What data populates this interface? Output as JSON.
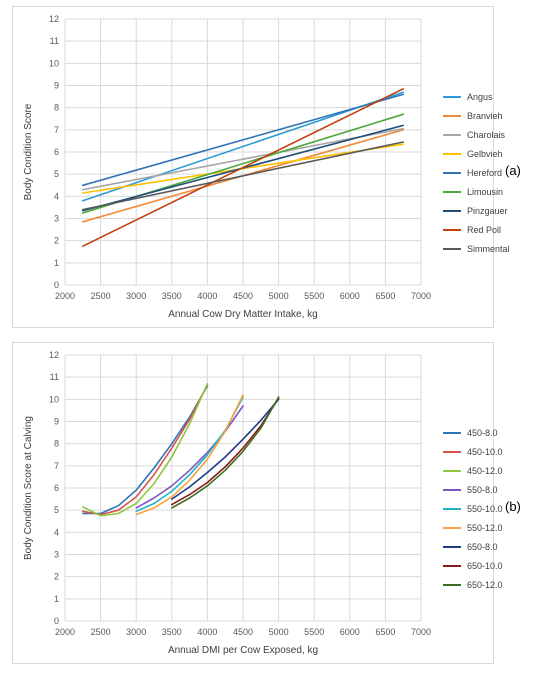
{
  "chart_data": [
    {
      "type": "line",
      "panel_label": "(a)",
      "title": "",
      "xlabel": "Annual Cow Dry Matter Intake, kg",
      "ylabel": "Body Condition Score",
      "xlim": [
        2000,
        7000
      ],
      "ylim": [
        0,
        12
      ],
      "xticks": [
        2000,
        2500,
        3000,
        3500,
        4000,
        4500,
        5000,
        5500,
        6000,
        6500,
        7000
      ],
      "yticks": [
        0,
        1,
        2,
        3,
        4,
        5,
        6,
        7,
        8,
        9,
        10,
        11,
        12
      ],
      "grid": true,
      "legend_position": "right",
      "series": [
        {
          "name": "Angus",
          "color": "#2E9BD6",
          "x": [
            2250,
            6750
          ],
          "y": [
            3.8,
            8.7
          ]
        },
        {
          "name": "Branvieh",
          "color": "#F28C3A",
          "x": [
            2250,
            6750
          ],
          "y": [
            2.85,
            7.0
          ]
        },
        {
          "name": "Charolais",
          "color": "#A6A6A6",
          "x": [
            2250,
            6750
          ],
          "y": [
            4.3,
            7.05
          ]
        },
        {
          "name": "Gelbvieh",
          "color": "#FFC000",
          "x": [
            2250,
            6750
          ],
          "y": [
            4.15,
            6.35
          ]
        },
        {
          "name": "Hereford",
          "color": "#2F75B5",
          "x": [
            2250,
            6750
          ],
          "y": [
            4.5,
            8.6
          ]
        },
        {
          "name": "Limousin",
          "color": "#4CA83A",
          "x": [
            2250,
            6750
          ],
          "y": [
            3.25,
            7.7
          ]
        },
        {
          "name": "Pinzgauer",
          "color": "#1F4E79",
          "x": [
            2250,
            6750
          ],
          "y": [
            3.35,
            7.2
          ]
        },
        {
          "name": "Red Poll",
          "color": "#C0410E",
          "x": [
            2250,
            6750
          ],
          "y": [
            1.75,
            8.85
          ]
        },
        {
          "name": "Simmental",
          "color": "#595959",
          "x": [
            2250,
            6750
          ],
          "y": [
            3.4,
            6.45
          ]
        }
      ]
    },
    {
      "type": "line",
      "panel_label": "(b)",
      "title": "",
      "xlabel": "Annual DMI per Cow Exposed, kg",
      "ylabel": "Body Condition Score at Calving",
      "xlim": [
        2000,
        7000
      ],
      "ylim": [
        0,
        12
      ],
      "xticks": [
        2000,
        2500,
        3000,
        3500,
        4000,
        4500,
        5000,
        5500,
        6000,
        6500,
        7000
      ],
      "yticks": [
        0,
        1,
        2,
        3,
        4,
        5,
        6,
        7,
        8,
        9,
        10,
        11,
        12
      ],
      "grid": true,
      "legend_position": "right",
      "series": [
        {
          "name": "450-8.0",
          "color": "#2E75B6",
          "x": [
            2250,
            2500,
            2750,
            3000,
            3250,
            3500,
            3750,
            4000
          ],
          "y": [
            4.85,
            4.85,
            5.2,
            5.9,
            6.9,
            8.0,
            9.2,
            10.6
          ]
        },
        {
          "name": "450-10.0",
          "color": "#D9534F",
          "x": [
            2250,
            2500,
            2750,
            3000,
            3250,
            3500,
            3750,
            4000
          ],
          "y": [
            4.95,
            4.8,
            5.0,
            5.6,
            6.6,
            7.8,
            9.1,
            10.65
          ]
        },
        {
          "name": "450-12.0",
          "color": "#8DC63F",
          "x": [
            2250,
            2500,
            2750,
            3000,
            3250,
            3500,
            3750,
            4000
          ],
          "y": [
            5.15,
            4.75,
            4.85,
            5.3,
            6.2,
            7.4,
            8.9,
            10.7
          ]
        },
        {
          "name": "550-8.0",
          "color": "#7E57C2",
          "x": [
            3000,
            3250,
            3500,
            3750,
            4000,
            4250,
            4500
          ],
          "y": [
            5.1,
            5.55,
            6.1,
            6.8,
            7.6,
            8.55,
            9.7
          ]
        },
        {
          "name": "550-10.0",
          "color": "#1FB5C9",
          "x": [
            3000,
            3250,
            3500,
            3750,
            4000,
            4250,
            4500
          ],
          "y": [
            4.95,
            5.3,
            5.85,
            6.6,
            7.5,
            8.6,
            10.1
          ]
        },
        {
          "name": "550-12.0",
          "color": "#F7A541",
          "x": [
            3000,
            3250,
            3500,
            3750,
            4000,
            4250,
            4500
          ],
          "y": [
            4.8,
            5.1,
            5.6,
            6.35,
            7.3,
            8.55,
            10.2
          ]
        },
        {
          "name": "650-8.0",
          "color": "#1F3C88",
          "x": [
            3500,
            3750,
            4000,
            4250,
            4500,
            4750,
            5000
          ],
          "y": [
            5.5,
            6.05,
            6.7,
            7.4,
            8.2,
            9.05,
            10.0
          ]
        },
        {
          "name": "650-10.0",
          "color": "#8B1A1A",
          "x": [
            3500,
            3750,
            4000,
            4250,
            4500,
            4750,
            5000
          ],
          "y": [
            5.25,
            5.7,
            6.25,
            6.95,
            7.8,
            8.8,
            10.05
          ]
        },
        {
          "name": "650-12.0",
          "color": "#3B6E22",
          "x": [
            3500,
            3750,
            4000,
            4250,
            4500,
            4750,
            5000
          ],
          "y": [
            5.1,
            5.55,
            6.1,
            6.8,
            7.65,
            8.7,
            10.1
          ]
        }
      ]
    }
  ]
}
